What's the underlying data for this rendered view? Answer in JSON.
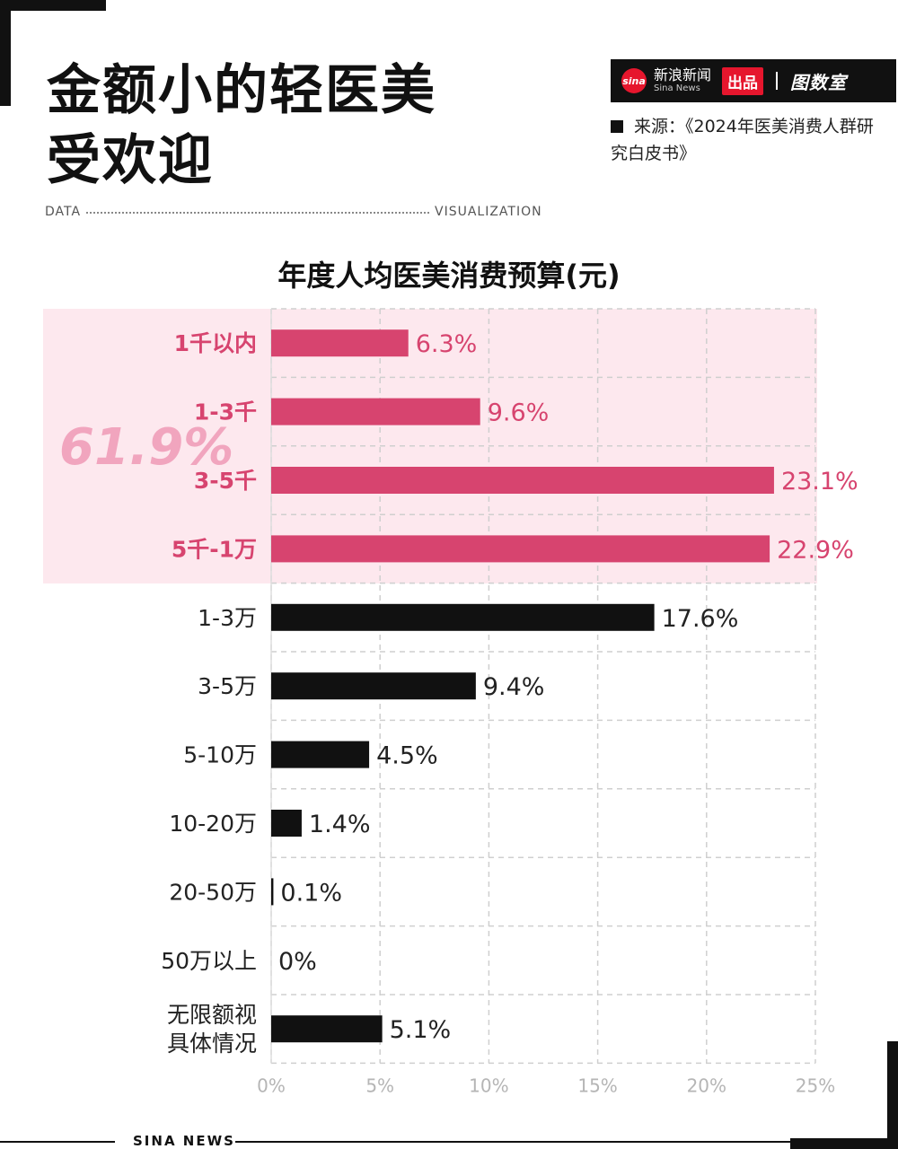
{
  "header": {
    "title_lines": [
      "金额小的轻医美",
      "受欢迎"
    ],
    "data_label": "DATA",
    "visualization_label": "VISUALIZATION"
  },
  "brand": {
    "logo_text": "sina",
    "name_cn": "新浪新闻",
    "name_en": "Sina News",
    "badge": "出品",
    "partner_logo": "图数室"
  },
  "source": {
    "text": "来源：《2024年医美消费人群研究白皮书》"
  },
  "highlight": {
    "total": "61.9%"
  },
  "footer": {
    "text": "SINA NEWS"
  },
  "colors": {
    "highlight_bar": "#d7446f",
    "normal_bar": "#111111",
    "highlight_text": "#d7446f",
    "highlight_band": "#fde8ee",
    "big_pct": "#f1a5be"
  },
  "chart_data": {
    "type": "bar",
    "orientation": "horizontal",
    "title": "年度人均医美消费预算(元)",
    "categories": [
      "1千以内",
      "1-3千",
      "3-5千",
      "5千-1万",
      "1-3万",
      "3-5万",
      "5-10万",
      "10-20万",
      "20-50万",
      "50万以上",
      "无限额视\n具体情况"
    ],
    "values": [
      6.3,
      9.6,
      23.1,
      22.9,
      17.6,
      9.4,
      4.5,
      1.4,
      0.1,
      0,
      5.1
    ],
    "value_labels": [
      "6.3%",
      "9.6%",
      "23.1%",
      "22.9%",
      "17.6%",
      "9.4%",
      "4.5%",
      "1.4%",
      "0.1%",
      "0%",
      "5.1%"
    ],
    "highlighted": [
      true,
      true,
      true,
      true,
      false,
      false,
      false,
      false,
      false,
      false,
      false
    ],
    "x_ticks": [
      "0%",
      "5%",
      "10%",
      "15%",
      "20%",
      "25%"
    ],
    "xlim": [
      0,
      25
    ],
    "grid": true
  }
}
